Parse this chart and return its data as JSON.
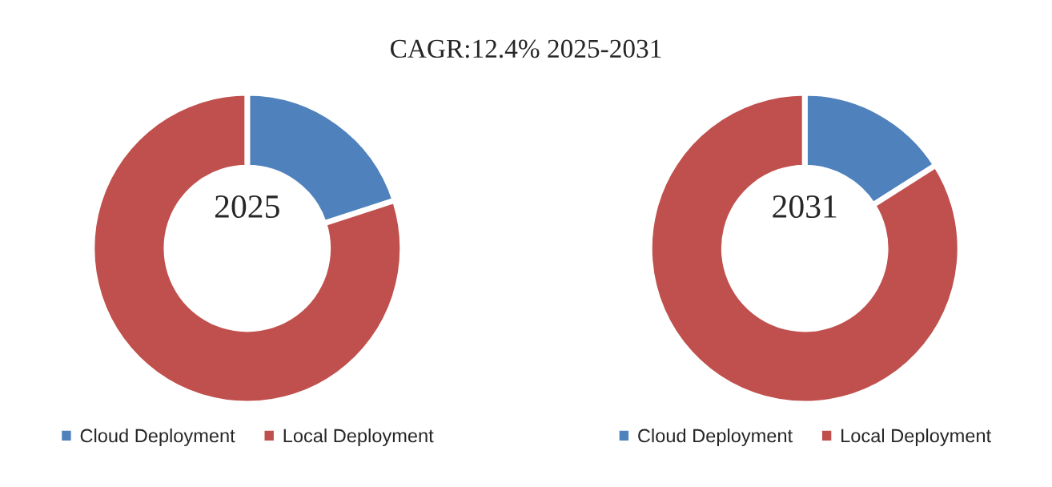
{
  "chart_data": [
    {
      "type": "donut",
      "title": "CAGR:12.4% 2025-2031",
      "annotations": [
        "2025"
      ],
      "categories": [
        "Cloud Deployment",
        "Local Deployment"
      ],
      "values": [
        20,
        80
      ],
      "colors": [
        "#4f81bd",
        "#c0504d"
      ],
      "legend": "bottom"
    },
    {
      "type": "donut",
      "annotations": [
        "2031"
      ],
      "categories": [
        "Cloud Deployment",
        "Local Deployment"
      ],
      "values": [
        16,
        84
      ],
      "colors": [
        "#4f81bd",
        "#c0504d"
      ],
      "legend": "bottom"
    }
  ]
}
